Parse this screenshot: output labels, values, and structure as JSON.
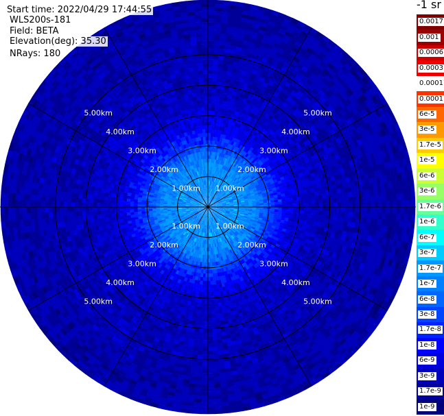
{
  "header": {
    "start_time": "Start time: 2022/04/29 17:44:55",
    "instrument": "WLS200s-181",
    "field": "Field: BETA",
    "elevation": "Elevation(deg): 35.30",
    "nrays": "NRays: 180"
  },
  "chart_data": {
    "type": "heatmap",
    "projection": "polar",
    "field": "BETA",
    "elevation_deg": 35.3,
    "nrays": 180,
    "ring_labels": [
      "1.00km",
      "2.00km",
      "3.00km",
      "4.00km",
      "5.00km"
    ],
    "ring_km": [
      1,
      2,
      3,
      4,
      5
    ],
    "max_range_km": 6.8,
    "spokes_deg": [
      0,
      30,
      60,
      90,
      120,
      150,
      180,
      210,
      240,
      270,
      300,
      330
    ],
    "grid": true,
    "radial_profile": {
      "range_km": [
        0,
        1.0,
        1.5,
        2.0,
        2.5,
        3.0,
        4.0,
        5.0,
        6.0,
        6.8
      ],
      "beta": [
        1.7e-07,
        1.7e-07,
        1.5e-07,
        4e-08,
        1.2e-08,
        6e-09,
        4e-09,
        3.5e-09,
        3e-09,
        3e-09
      ]
    }
  },
  "colorbar": {
    "title": "-1 sr",
    "labels": [
      "0.0017",
      "0.001",
      "0.0006",
      "0.0003",
      "0.00017",
      "0.0001",
      "6e-5",
      "3e-5",
      "1.7e-5",
      "1e-5",
      "6e-6",
      "3e-6",
      "1.7e-6",
      "1e-6",
      "6e-7",
      "3e-7",
      "1.7e-7",
      "1e-7",
      "6e-8",
      "3e-8",
      "1.7e-8",
      "1e-8",
      "6e-9",
      "3e-9",
      "1.7e-9",
      "1e-9"
    ],
    "colors": [
      "#800000",
      "#9a0000",
      "#c80000",
      "#ee0000",
      "#ffffff",
      "#ff3300",
      "#ff6600",
      "#ff9900",
      "#ffcc00",
      "#ffff00",
      "#ccff33",
      "#99ff66",
      "#66ff99",
      "#33ffcc",
      "#00ffff",
      "#00ccff",
      "#0099ff",
      "#0080ff",
      "#0066ff",
      "#0044ff",
      "#0022ff",
      "#0000ff",
      "#0000dd",
      "#0000bb",
      "#000099",
      "#00007a"
    ]
  }
}
